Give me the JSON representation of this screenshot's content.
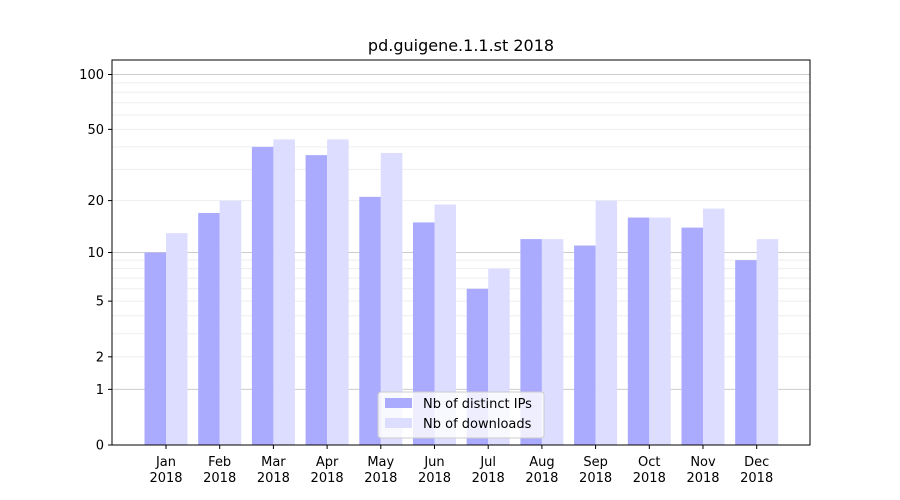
{
  "chart_data": {
    "type": "bar",
    "title": "pd.guigene.1.1.st 2018",
    "xlabel": "",
    "ylabel": "",
    "y_scale": "log(1+y)",
    "ylim": [
      0,
      120
    ],
    "y_ticks": [
      0,
      1,
      2,
      5,
      10,
      20,
      50,
      100
    ],
    "y_tick_labels": [
      "0",
      "1",
      "2",
      "5",
      "10",
      "20",
      "50",
      "100"
    ],
    "grid": true,
    "legend_position": "bottom-center",
    "categories": [
      {
        "month": "Jan",
        "year": "2018"
      },
      {
        "month": "Feb",
        "year": "2018"
      },
      {
        "month": "Mar",
        "year": "2018"
      },
      {
        "month": "Apr",
        "year": "2018"
      },
      {
        "month": "May",
        "year": "2018"
      },
      {
        "month": "Jun",
        "year": "2018"
      },
      {
        "month": "Jul",
        "year": "2018"
      },
      {
        "month": "Aug",
        "year": "2018"
      },
      {
        "month": "Sep",
        "year": "2018"
      },
      {
        "month": "Oct",
        "year": "2018"
      },
      {
        "month": "Nov",
        "year": "2018"
      },
      {
        "month": "Dec",
        "year": "2018"
      }
    ],
    "series": [
      {
        "name": "Nb of distinct IPs",
        "color": "#aaaaff",
        "values": [
          10,
          17,
          40,
          36,
          21,
          15,
          6,
          12,
          11,
          16,
          14,
          9
        ]
      },
      {
        "name": "Nb of downloads",
        "color": "#ddddff",
        "values": [
          13,
          20,
          44,
          44,
          37,
          19,
          8,
          12,
          20,
          16,
          18,
          12
        ]
      }
    ]
  }
}
